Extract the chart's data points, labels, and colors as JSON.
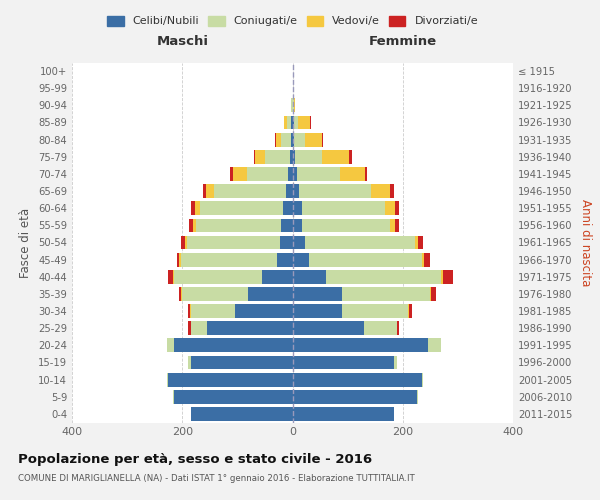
{
  "age_groups": [
    "0-4",
    "5-9",
    "10-14",
    "15-19",
    "20-24",
    "25-29",
    "30-34",
    "35-39",
    "40-44",
    "45-49",
    "50-54",
    "55-59",
    "60-64",
    "65-69",
    "70-74",
    "75-79",
    "80-84",
    "85-89",
    "90-94",
    "95-99",
    "100+"
  ],
  "birth_years": [
    "2011-2015",
    "2006-2010",
    "2001-2005",
    "1996-2000",
    "1991-1995",
    "1986-1990",
    "1981-1985",
    "1976-1980",
    "1971-1975",
    "1966-1970",
    "1961-1965",
    "1956-1960",
    "1951-1955",
    "1946-1950",
    "1941-1945",
    "1936-1940",
    "1931-1935",
    "1926-1930",
    "1921-1925",
    "1916-1920",
    "≤ 1915"
  ],
  "male": {
    "celibe": [
      185,
      215,
      225,
      185,
      215,
      155,
      105,
      80,
      55,
      28,
      22,
      20,
      18,
      12,
      8,
      5,
      2,
      2,
      0,
      0,
      0
    ],
    "coniugato": [
      0,
      2,
      2,
      5,
      12,
      30,
      80,
      120,
      160,
      175,
      170,
      155,
      150,
      130,
      75,
      45,
      18,
      8,
      2,
      0,
      0
    ],
    "vedovo": [
      0,
      0,
      0,
      0,
      0,
      0,
      1,
      2,
      2,
      2,
      3,
      5,
      8,
      15,
      25,
      18,
      10,
      5,
      0,
      0,
      0
    ],
    "divorziato": [
      0,
      0,
      0,
      0,
      0,
      5,
      3,
      3,
      8,
      5,
      8,
      8,
      8,
      5,
      5,
      2,
      1,
      0,
      0,
      0,
      0
    ]
  },
  "female": {
    "nubile": [
      185,
      225,
      235,
      185,
      245,
      130,
      90,
      90,
      60,
      30,
      22,
      18,
      18,
      12,
      8,
      5,
      3,
      2,
      0,
      0,
      0
    ],
    "coniugata": [
      0,
      2,
      2,
      5,
      25,
      60,
      120,
      160,
      210,
      205,
      200,
      158,
      150,
      130,
      78,
      48,
      20,
      8,
      2,
      0,
      0
    ],
    "vedova": [
      0,
      0,
      0,
      0,
      0,
      0,
      1,
      2,
      3,
      4,
      5,
      10,
      18,
      35,
      45,
      50,
      30,
      22,
      2,
      0,
      0
    ],
    "divorziata": [
      0,
      0,
      0,
      0,
      0,
      3,
      5,
      8,
      18,
      10,
      10,
      8,
      8,
      8,
      5,
      5,
      2,
      2,
      0,
      0,
      0
    ]
  },
  "colors": {
    "celibe": "#3b6ea5",
    "coniugato": "#c8dca4",
    "vedovo": "#f5c840",
    "divorziato": "#cc2222"
  },
  "legend_labels": [
    "Celibi/Nubili",
    "Coniugati/e",
    "Vedovi/e",
    "Divorziati/e"
  ],
  "legend_colors": [
    "#3b6ea5",
    "#c8dca4",
    "#f5c840",
    "#cc2222"
  ],
  "title": "Popolazione per età, sesso e stato civile - 2016",
  "subtitle": "COMUNE DI MARIGLIANELLA (NA) - Dati ISTAT 1° gennaio 2016 - Elaborazione TUTTITALIA.IT",
  "xlabel_left": "Maschi",
  "xlabel_right": "Femmine",
  "ylabel_left": "Fasce di età",
  "ylabel_right": "Anni di nascita",
  "xlim": 400,
  "bg_color": "#f2f2f2",
  "plot_bg": "#ffffff",
  "grid_color": "#cccccc"
}
